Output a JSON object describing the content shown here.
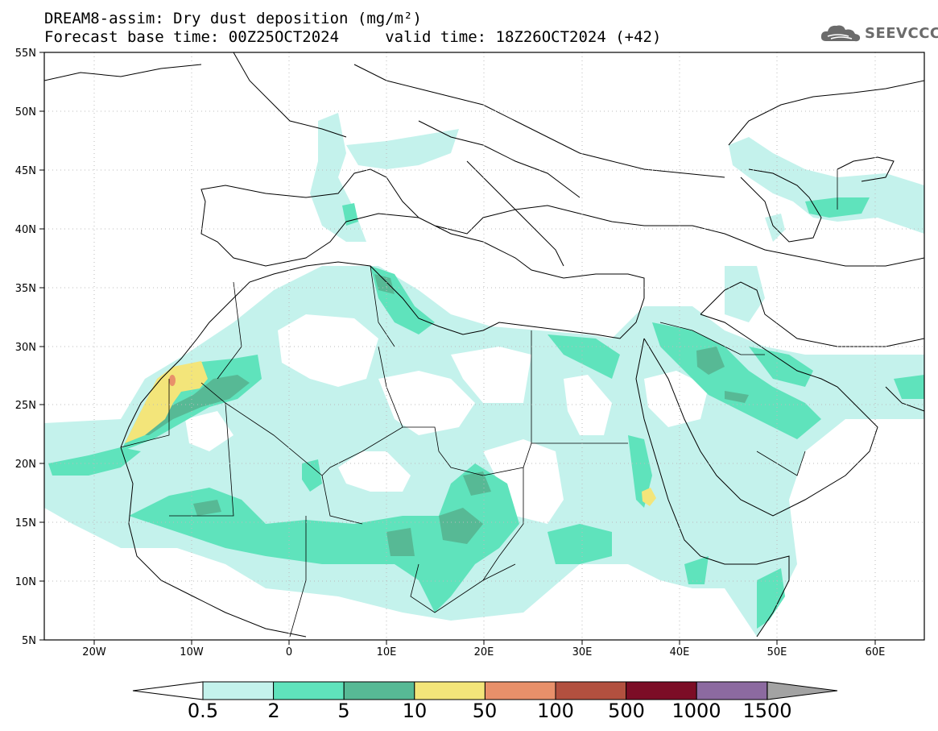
{
  "header": {
    "title_line1": "DREAM8-assim: Dry dust deposition (mg/m²)",
    "title_line2": "Forecast base time: 00Z25OCT2024     valid time: 18Z26OCT2024 (+42)"
  },
  "logo": {
    "text": "SEEVCCC",
    "icon": "cloud-logo-icon"
  },
  "map": {
    "lon_range": [
      -25,
      65
    ],
    "lat_range": [
      5,
      55
    ],
    "x_ticks": [
      "20W",
      "10W",
      "0",
      "10E",
      "20E",
      "30E",
      "40E",
      "50E",
      "60E"
    ],
    "y_ticks": [
      "55N",
      "50N",
      "45N",
      "40N",
      "35N",
      "30N",
      "25N",
      "20N",
      "15N",
      "10N",
      "5N"
    ],
    "grid": "dotted"
  },
  "colorbar": {
    "labels": [
      "0.5",
      "2",
      "5",
      "10",
      "50",
      "100",
      "500",
      "1000",
      "1500"
    ],
    "colors": [
      "#c4f2ec",
      "#5fe3bc",
      "#57b995",
      "#f3e57a",
      "#e8906a",
      "#b2503f",
      "#7c0d26",
      "#8c6aa0",
      "#a3a3a3"
    ],
    "under_color": "#ffffff"
  }
}
